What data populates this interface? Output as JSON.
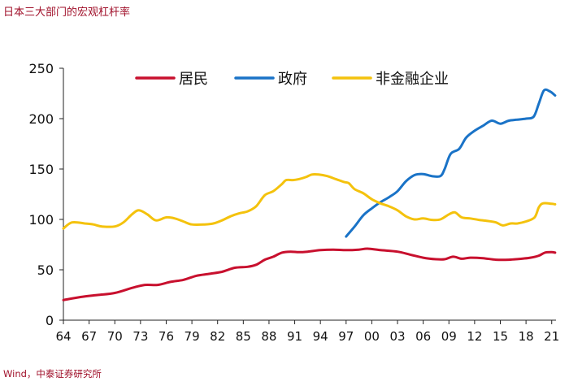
{
  "title": "日本三大部门的宏观杠杆率",
  "source": "Wind，中泰证券研究所",
  "chart_data": {
    "type": "line",
    "title": "日本三大部门的宏观杠杆率",
    "xlabel": "",
    "ylabel": "",
    "ylim": [
      0,
      250
    ],
    "yticks": [
      0,
      50,
      100,
      150,
      200,
      250
    ],
    "xlim": [
      1964,
      2021.5
    ],
    "xticks": [
      {
        "year": 1964,
        "label": "64"
      },
      {
        "year": 1967,
        "label": "67"
      },
      {
        "year": 1970,
        "label": "70"
      },
      {
        "year": 1973,
        "label": "73"
      },
      {
        "year": 1976,
        "label": "76"
      },
      {
        "year": 1979,
        "label": "79"
      },
      {
        "year": 1982,
        "label": "82"
      },
      {
        "year": 1985,
        "label": "85"
      },
      {
        "year": 1988,
        "label": "88"
      },
      {
        "year": 1991,
        "label": "91"
      },
      {
        "year": 1994,
        "label": "94"
      },
      {
        "year": 1997,
        "label": "97"
      },
      {
        "year": 2000,
        "label": "00"
      },
      {
        "year": 2003,
        "label": "03"
      },
      {
        "year": 2006,
        "label": "06"
      },
      {
        "year": 2009,
        "label": "09"
      },
      {
        "year": 2012,
        "label": "12"
      },
      {
        "year": 2015,
        "label": "15"
      },
      {
        "year": 2018,
        "label": "18"
      },
      {
        "year": 2021,
        "label": "21"
      }
    ],
    "grid": false,
    "legend_position": "top",
    "series": [
      {
        "name": "居民",
        "color": "#c8102e",
        "points": [
          [
            1964.0,
            20
          ],
          [
            1966.0,
            23
          ],
          [
            1968.0,
            25
          ],
          [
            1970.0,
            27
          ],
          [
            1972.0,
            32
          ],
          [
            1973.5,
            35
          ],
          [
            1975.0,
            35
          ],
          [
            1976.5,
            38
          ],
          [
            1978.0,
            40
          ],
          [
            1979.5,
            44
          ],
          [
            1981.0,
            46
          ],
          [
            1982.5,
            48
          ],
          [
            1984.0,
            52
          ],
          [
            1985.5,
            53
          ],
          [
            1986.5,
            55
          ],
          [
            1987.5,
            60
          ],
          [
            1988.5,
            63
          ],
          [
            1989.5,
            67
          ],
          [
            1990.5,
            68
          ],
          [
            1991.5,
            67.5
          ],
          [
            1992.5,
            68
          ],
          [
            1994.0,
            69.5
          ],
          [
            1995.5,
            70
          ],
          [
            1997.0,
            69.5
          ],
          [
            1998.5,
            70
          ],
          [
            1999.5,
            71
          ],
          [
            2001.0,
            69.5
          ],
          [
            2003.0,
            68
          ],
          [
            2004.5,
            65
          ],
          [
            2006.0,
            62
          ],
          [
            2007.5,
            60.5
          ],
          [
            2008.5,
            60.5
          ],
          [
            2009.5,
            63
          ],
          [
            2010.5,
            61
          ],
          [
            2011.5,
            62
          ],
          [
            2013.0,
            61.5
          ],
          [
            2014.5,
            60
          ],
          [
            2016.0,
            60
          ],
          [
            2017.5,
            61
          ],
          [
            2018.5,
            62
          ],
          [
            2019.5,
            64
          ],
          [
            2020.2,
            67
          ],
          [
            2021.0,
            67.5
          ],
          [
            2021.4,
            67
          ]
        ]
      },
      {
        "name": "政府",
        "color": "#1a73c7",
        "points": [
          [
            1997.0,
            83
          ],
          [
            1998.0,
            93
          ],
          [
            1999.0,
            104
          ],
          [
            2000.0,
            111
          ],
          [
            2001.0,
            117
          ],
          [
            2002.0,
            122
          ],
          [
            2003.0,
            128
          ],
          [
            2004.0,
            138
          ],
          [
            2005.0,
            144
          ],
          [
            2006.0,
            145
          ],
          [
            2007.0,
            143
          ],
          [
            2008.0,
            143
          ],
          [
            2008.5,
            150
          ],
          [
            2009.2,
            165
          ],
          [
            2010.2,
            170
          ],
          [
            2011.0,
            181
          ],
          [
            2012.0,
            188
          ],
          [
            2013.0,
            193
          ],
          [
            2014.0,
            198
          ],
          [
            2015.0,
            195
          ],
          [
            2016.0,
            198
          ],
          [
            2017.0,
            199
          ],
          [
            2018.0,
            200
          ],
          [
            2018.9,
            202
          ],
          [
            2019.5,
            215
          ],
          [
            2020.1,
            228
          ],
          [
            2020.8,
            227
          ],
          [
            2021.4,
            223
          ]
        ]
      },
      {
        "name": "非金融企业",
        "color": "#f4c20d",
        "points": [
          [
            1964.0,
            91
          ],
          [
            1965.0,
            97
          ],
          [
            1966.5,
            96
          ],
          [
            1967.5,
            95
          ],
          [
            1968.5,
            93
          ],
          [
            1970.0,
            93
          ],
          [
            1971.0,
            97
          ],
          [
            1972.0,
            105
          ],
          [
            1972.8,
            109
          ],
          [
            1973.8,
            105
          ],
          [
            1974.8,
            99
          ],
          [
            1976.0,
            102
          ],
          [
            1977.0,
            101
          ],
          [
            1978.0,
            98
          ],
          [
            1979.0,
            95
          ],
          [
            1980.5,
            95
          ],
          [
            1981.5,
            96
          ],
          [
            1982.5,
            99
          ],
          [
            1983.5,
            103
          ],
          [
            1984.5,
            106
          ],
          [
            1985.5,
            108
          ],
          [
            1986.5,
            113
          ],
          [
            1987.5,
            124
          ],
          [
            1988.5,
            128
          ],
          [
            1989.5,
            135
          ],
          [
            1990.0,
            139
          ],
          [
            1990.8,
            139
          ],
          [
            1991.5,
            140
          ],
          [
            1992.3,
            142
          ],
          [
            1993.0,
            144.5
          ],
          [
            1993.8,
            144.5
          ],
          [
            1994.8,
            143
          ],
          [
            1995.8,
            140
          ],
          [
            1996.8,
            137
          ],
          [
            1997.3,
            136
          ],
          [
            1998.0,
            130
          ],
          [
            1999.0,
            126
          ],
          [
            2000.0,
            120
          ],
          [
            2001.0,
            116
          ],
          [
            2002.0,
            113
          ],
          [
            2003.0,
            109
          ],
          [
            2004.0,
            103
          ],
          [
            2005.0,
            100
          ],
          [
            2006.0,
            101
          ],
          [
            2007.0,
            99.5
          ],
          [
            2008.0,
            100
          ],
          [
            2009.0,
            105
          ],
          [
            2009.7,
            107
          ],
          [
            2010.5,
            102
          ],
          [
            2011.5,
            101
          ],
          [
            2012.5,
            99.5
          ],
          [
            2013.5,
            98.5
          ],
          [
            2014.5,
            97
          ],
          [
            2015.3,
            94
          ],
          [
            2016.2,
            96
          ],
          [
            2017.0,
            96
          ],
          [
            2018.0,
            98
          ],
          [
            2019.0,
            102
          ],
          [
            2019.5,
            112
          ],
          [
            2020.0,
            116
          ],
          [
            2021.0,
            115.5
          ],
          [
            2021.4,
            115
          ]
        ]
      }
    ]
  }
}
